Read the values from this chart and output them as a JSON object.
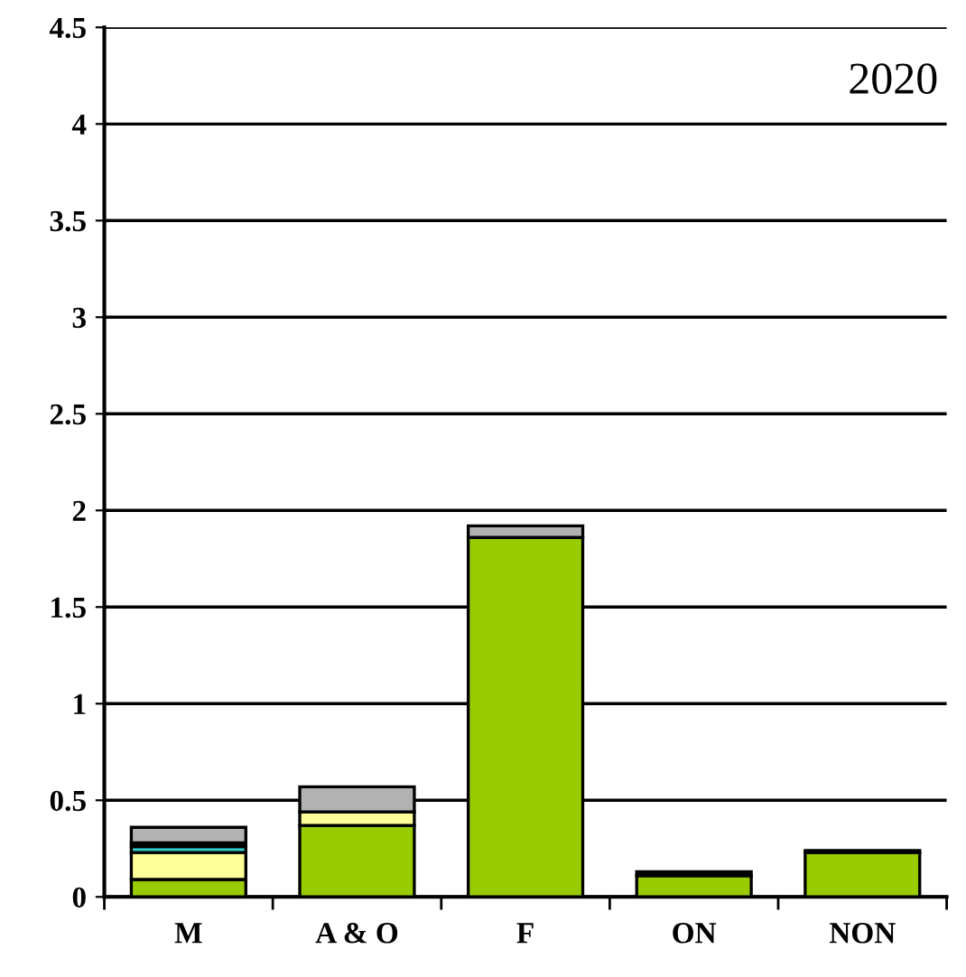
{
  "chart_data": {
    "type": "bar",
    "stacked": true,
    "categories": [
      "M",
      "A & O",
      "F",
      "ON",
      "NON"
    ],
    "series": [
      {
        "color": "#99cc00",
        "values": [
          0.09,
          0.37,
          1.86,
          0.11,
          0.23
        ]
      },
      {
        "color": "#ffff99",
        "values": [
          0.14,
          0.07,
          null,
          null,
          null
        ]
      },
      {
        "color": "#33cccc",
        "values": [
          0.03,
          null,
          null,
          null,
          null
        ]
      },
      {
        "color": "#000000",
        "values": [
          0.02,
          null,
          null,
          0.02,
          0.01
        ]
      },
      {
        "color": "#b2b2b2",
        "values": [
          0.08,
          0.13,
          0.06,
          null,
          null
        ]
      }
    ],
    "ylim": [
      0,
      4.5
    ],
    "yticks": [
      0,
      0.5,
      1,
      1.5,
      2,
      2.5,
      3,
      3.5,
      4,
      4.5
    ],
    "grid": "y",
    "annotations": [
      "2020"
    ]
  }
}
